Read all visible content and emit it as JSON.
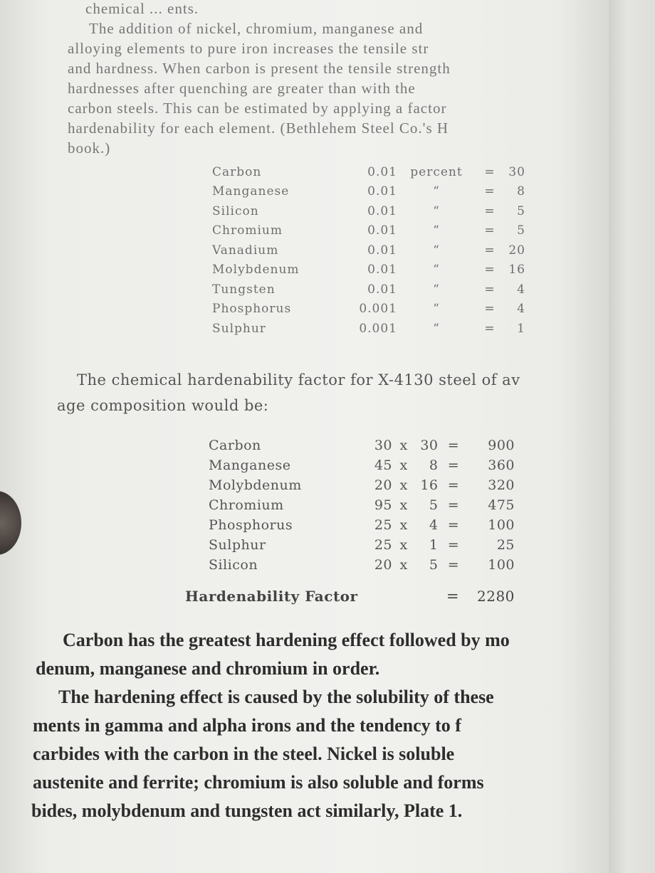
{
  "intro_lines": [
    "chemical ... ents.",
    "The addition of nickel, chromium, manganese and",
    "alloying elements to pure iron increases the tensile str",
    "and hardness. When carbon is present the tensile strength",
    "hardnesses after quenching are greater than with the",
    "carbon steels. This can be estimated by applying a factor",
    "hardenability for each element. (Bethlehem Steel Co.'s H",
    "book.)"
  ],
  "factor_table": {
    "rows": [
      {
        "element": "Carbon",
        "amount": "0.01",
        "unit": "percent",
        "eq": "=",
        "factor": "30"
      },
      {
        "element": "Manganese",
        "amount": "0.01",
        "unit": "“",
        "eq": "=",
        "factor": "8"
      },
      {
        "element": "Silicon",
        "amount": "0.01",
        "unit": "“",
        "eq": "=",
        "factor": "5"
      },
      {
        "element": "Chromium",
        "amount": "0.01",
        "unit": "“",
        "eq": "=",
        "factor": "5"
      },
      {
        "element": "Vanadium",
        "amount": "0.01",
        "unit": "“",
        "eq": "=",
        "factor": "20"
      },
      {
        "element": "Molybdenum",
        "amount": "0.01",
        "unit": "“",
        "eq": "=",
        "factor": "16"
      },
      {
        "element": "Tungsten",
        "amount": "0.01",
        "unit": "“",
        "eq": "=",
        "factor": "4"
      },
      {
        "element": "Phosphorus",
        "amount": "0.001",
        "unit": "“",
        "eq": "=",
        "factor": "4"
      },
      {
        "element": "Sulphur",
        "amount": "0.001",
        "unit": "“",
        "eq": "=",
        "factor": "1"
      }
    ]
  },
  "middle_lines": [
    "The chemical hardenability factor for X-4130 steel of av",
    "age composition would be:"
  ],
  "calc_table": {
    "rows": [
      {
        "element": "Carbon",
        "a": "30",
        "x": "x",
        "b": "30",
        "eq": "=",
        "result": "900"
      },
      {
        "element": "Manganese",
        "a": "45",
        "x": "x",
        "b": "8",
        "eq": "=",
        "result": "360"
      },
      {
        "element": "Molybdenum",
        "a": "20",
        "x": "x",
        "b": "16",
        "eq": "=",
        "result": "320"
      },
      {
        "element": "Chromium",
        "a": "95",
        "x": "x",
        "b": "5",
        "eq": "=",
        "result": "475"
      },
      {
        "element": "Phosphorus",
        "a": "25",
        "x": "x",
        "b": "4",
        "eq": "=",
        "result": "100"
      },
      {
        "element": "Sulphur",
        "a": "25",
        "x": "x",
        "b": "1",
        "eq": "=",
        "result": "25"
      },
      {
        "element": "Silicon",
        "a": "20",
        "x": "x",
        "b": "5",
        "eq": "=",
        "result": "100"
      }
    ],
    "total_label": "Hardenability Factor",
    "total_eq": "=",
    "total_value": "2280"
  },
  "closing_lines": [
    "Carbon has the greatest hardening effect followed by mo",
    "denum, manganese and chromium in order.",
    "The hardening effect is caused by the solubility of these",
    "ments in gamma and alpha irons and the tendency to f",
    "carbides with the carbon in the steel. Nickel is soluble",
    "austenite and ferrite; chromium is also soluble and forms",
    "bides, molybdenum and tungsten act similarly, Plate 1."
  ]
}
